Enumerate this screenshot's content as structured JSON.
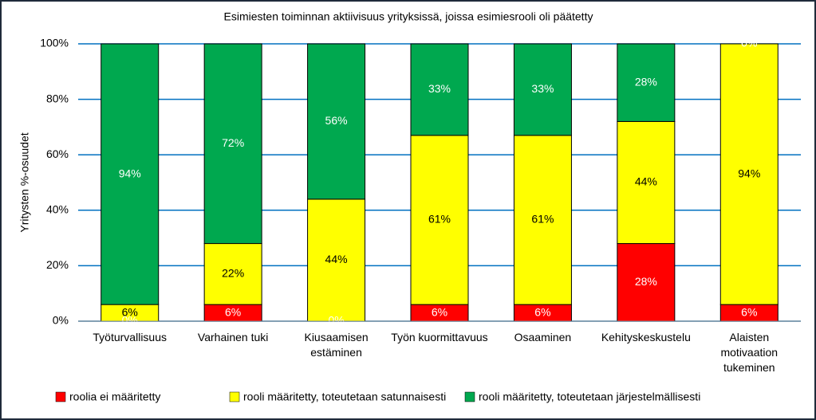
{
  "chart_data": {
    "type": "stacked_bar",
    "title": "Esimiesten toiminnan aktiivisuus yrityksissä, joissa esimiesrooli oli päätetty",
    "y_label": "Yritysten %-osuudet",
    "categories": [
      "Työturvallisuus",
      "Varhainen tuki",
      "Kiusaamisen estäminen",
      "Työn kuormittavuus",
      "Osaaminen",
      "Kehityskeskustelu",
      "Alaisten motivaation tukeminen"
    ],
    "series": [
      {
        "name": "roolia ei määritetty",
        "color": "#ff0000",
        "label_color": "#ffffff",
        "values": [
          0,
          6,
          0,
          6,
          6,
          28,
          6
        ],
        "value_labels": [
          "0%",
          "6%",
          "0%",
          "6%",
          "6%",
          "28%",
          "6%"
        ]
      },
      {
        "name": "rooli määritetty, toteutetaan satunnaisesti",
        "color": "#ffff00",
        "label_color": "#000000",
        "values": [
          6,
          22,
          44,
          61,
          61,
          44,
          94
        ],
        "value_labels": [
          "6%",
          "22%",
          "44%",
          "61%",
          "61%",
          "44%",
          "94%"
        ]
      },
      {
        "name": "rooli määritetty, toteutetaan järjestelmällisesti",
        "color": "#00a84f",
        "label_color": "#ffffff",
        "values": [
          94,
          72,
          56,
          33,
          33,
          28,
          0
        ],
        "value_labels": [
          "94%",
          "72%",
          "56%",
          "33%",
          "33%",
          "28%",
          "0%"
        ]
      }
    ],
    "ylim": [
      0,
      100
    ],
    "yticks": [
      {
        "value": 0,
        "label": "0%"
      },
      {
        "value": 20,
        "label": "20%"
      },
      {
        "value": 40,
        "label": "40%"
      },
      {
        "value": 60,
        "label": "60%"
      },
      {
        "value": 80,
        "label": "80%"
      },
      {
        "value": 100,
        "label": "100%"
      }
    ],
    "grid": true,
    "grid_color": "#0070c0",
    "legend_position": "bottom"
  }
}
